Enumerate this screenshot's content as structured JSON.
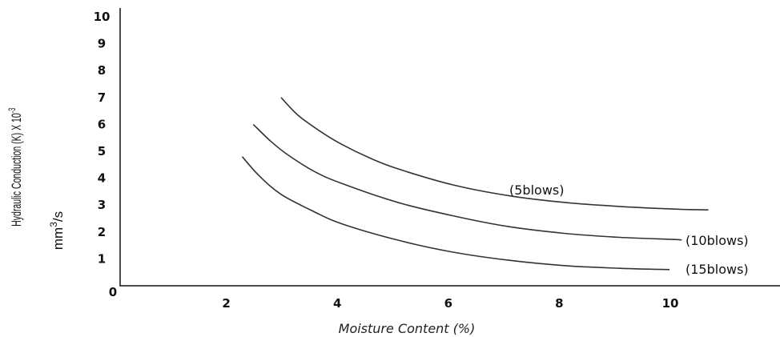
{
  "chart_data": {
    "type": "line",
    "xlabel": "Moisture Content (%)",
    "ylabel_line1": "Hydraulic Conduction  (K) X 10",
    "ylabel_exp": "-3",
    "ylabel_line2_base": "mm",
    "ylabel_line2_exp": "3",
    "ylabel_line2_unit": "/s",
    "xlim": [
      0,
      12
    ],
    "ylim": [
      0,
      10
    ],
    "x_ticks": [
      "0",
      "2",
      "4",
      "6",
      "8",
      "10"
    ],
    "y_ticks": [
      "1",
      "2",
      "3",
      "4",
      "5",
      "6",
      "7",
      "8",
      "9",
      "10"
    ],
    "grid": false,
    "series": [
      {
        "name": "(5blows)",
        "x": [
          2.9,
          3.2,
          3.6,
          4.0,
          4.5,
          5.0,
          6.0,
          7.0,
          8.0,
          9.0,
          10.0,
          10.6
        ],
        "y": [
          7.0,
          6.35,
          5.75,
          5.25,
          4.75,
          4.35,
          3.75,
          3.35,
          3.1,
          2.95,
          2.85,
          2.82
        ]
      },
      {
        "name": "(10blows)",
        "x": [
          2.4,
          2.7,
          3.0,
          3.5,
          4.0,
          5.0,
          6.0,
          7.0,
          8.0,
          9.0,
          10.0,
          10.1
        ],
        "y": [
          6.0,
          5.4,
          4.9,
          4.25,
          3.8,
          3.1,
          2.6,
          2.2,
          1.95,
          1.8,
          1.72,
          1.7
        ]
      },
      {
        "name": "(15blows)",
        "x": [
          2.2,
          2.5,
          2.9,
          3.5,
          4.0,
          5.0,
          6.0,
          7.0,
          8.0,
          9.0,
          9.9
        ],
        "y": [
          4.8,
          4.1,
          3.4,
          2.75,
          2.3,
          1.7,
          1.25,
          0.95,
          0.75,
          0.65,
          0.6
        ]
      }
    ]
  }
}
